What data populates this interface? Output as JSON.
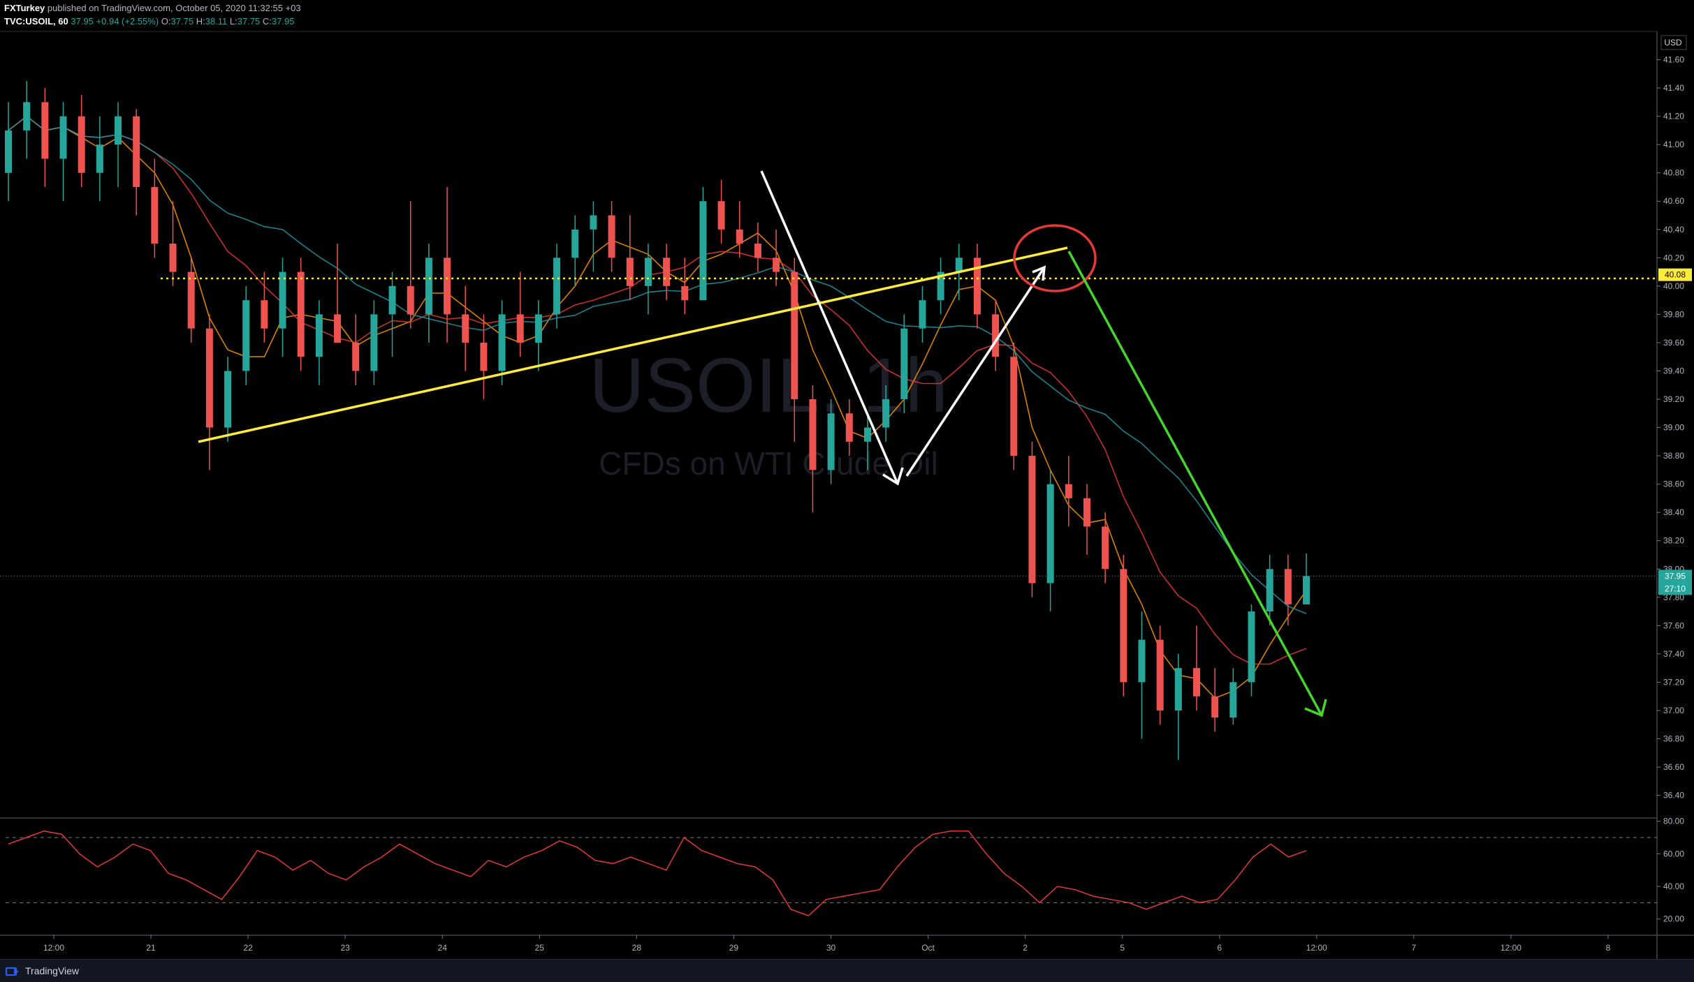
{
  "header": {
    "publisher": "FXTurkey",
    "published_text": "published on TradingView.com, October 05, 2020 11:32:55 +03",
    "symbol_line": "TVC:USOIL, 60",
    "last": "37.95",
    "change": "+0.94 (+2.55%)",
    "o_label": "O:",
    "o": "37.75",
    "h_label": "H:",
    "h": "38.11",
    "l_label": "L:",
    "l": "37.75",
    "c_label": "C:",
    "c": "37.95"
  },
  "watermark": {
    "symbol": "USOIL, 1h",
    "description": "CFDs on WTI Crude Oil"
  },
  "footer": {
    "brand": "TradingView"
  },
  "colors": {
    "background": "#000000",
    "bull": "#26a69a",
    "bear": "#ef5350",
    "trendline_yellow": "#ffeb3b",
    "arrow_white": "#ffffff",
    "arrow_green": "#44d62c",
    "circle_red": "#e53935",
    "ma_orange": "#ff9800",
    "ma_red": "#e53935",
    "ma_blue": "#2196a8",
    "rsi": "#e53935"
  },
  "chart_data": {
    "type": "candlestick",
    "symbol": "TVC:USOIL",
    "interval": "60",
    "currency": "USD",
    "y_ticks": [
      "41.60",
      "41.40",
      "41.20",
      "41.00",
      "40.80",
      "40.60",
      "40.40",
      "40.20",
      "40.00",
      "39.80",
      "39.60",
      "39.40",
      "39.20",
      "39.00",
      "38.80",
      "38.60",
      "38.40",
      "38.20",
      "38.00",
      "37.80",
      "37.60",
      "37.40",
      "37.20",
      "37.00",
      "36.80",
      "36.60",
      "36.40"
    ],
    "ylim": [
      36.25,
      41.8
    ],
    "x_ticks": [
      "12:00",
      "21",
      "22",
      "23",
      "24",
      "25",
      "28",
      "29",
      "30",
      "Oct",
      "2",
      "5",
      "6",
      "12:00",
      "7",
      "12:00",
      "8"
    ],
    "horizontal_level": {
      "value": 40.08,
      "label": "40.08"
    },
    "price_label": {
      "value": 37.95,
      "label": "37.95",
      "countdown": "27:10"
    },
    "candles_approx": [
      {
        "o": 40.8,
        "h": 41.3,
        "l": 40.6,
        "c": 41.1
      },
      {
        "o": 41.1,
        "h": 41.45,
        "l": 40.9,
        "c": 41.3
      },
      {
        "o": 41.3,
        "h": 41.4,
        "l": 40.7,
        "c": 40.9
      },
      {
        "o": 40.9,
        "h": 41.3,
        "l": 40.6,
        "c": 41.2
      },
      {
        "o": 41.2,
        "h": 41.35,
        "l": 40.7,
        "c": 40.8
      },
      {
        "o": 40.8,
        "h": 41.2,
        "l": 40.6,
        "c": 41.0
      },
      {
        "o": 41.0,
        "h": 41.3,
        "l": 40.7,
        "c": 41.2
      },
      {
        "o": 41.2,
        "h": 41.25,
        "l": 40.5,
        "c": 40.7
      },
      {
        "o": 40.7,
        "h": 40.9,
        "l": 40.2,
        "c": 40.3
      },
      {
        "o": 40.3,
        "h": 40.6,
        "l": 40.0,
        "c": 40.1
      },
      {
        "o": 40.1,
        "h": 40.2,
        "l": 39.6,
        "c": 39.7
      },
      {
        "o": 39.7,
        "h": 39.8,
        "l": 38.7,
        "c": 39.0
      },
      {
        "o": 39.0,
        "h": 39.5,
        "l": 38.9,
        "c": 39.4
      },
      {
        "o": 39.4,
        "h": 40.0,
        "l": 39.3,
        "c": 39.9
      },
      {
        "o": 39.9,
        "h": 40.1,
        "l": 39.6,
        "c": 39.7
      },
      {
        "o": 39.7,
        "h": 40.2,
        "l": 39.5,
        "c": 40.1
      },
      {
        "o": 40.1,
        "h": 40.2,
        "l": 39.4,
        "c": 39.5
      },
      {
        "o": 39.5,
        "h": 39.9,
        "l": 39.3,
        "c": 39.8
      },
      {
        "o": 39.8,
        "h": 40.3,
        "l": 39.6,
        "c": 39.6
      },
      {
        "o": 39.6,
        "h": 39.8,
        "l": 39.3,
        "c": 39.4
      },
      {
        "o": 39.4,
        "h": 39.9,
        "l": 39.3,
        "c": 39.8
      },
      {
        "o": 39.8,
        "h": 40.1,
        "l": 39.5,
        "c": 40.0
      },
      {
        "o": 40.0,
        "h": 40.6,
        "l": 39.7,
        "c": 39.8
      },
      {
        "o": 39.8,
        "h": 40.3,
        "l": 39.6,
        "c": 40.2
      },
      {
        "o": 40.2,
        "h": 40.7,
        "l": 39.6,
        "c": 39.8
      },
      {
        "o": 39.8,
        "h": 40.0,
        "l": 39.4,
        "c": 39.6
      },
      {
        "o": 39.6,
        "h": 39.8,
        "l": 39.2,
        "c": 39.4
      },
      {
        "o": 39.4,
        "h": 39.9,
        "l": 39.3,
        "c": 39.8
      },
      {
        "o": 39.8,
        "h": 40.1,
        "l": 39.5,
        "c": 39.6
      },
      {
        "o": 39.6,
        "h": 39.9,
        "l": 39.4,
        "c": 39.8
      },
      {
        "o": 39.8,
        "h": 40.3,
        "l": 39.7,
        "c": 40.2
      },
      {
        "o": 40.2,
        "h": 40.5,
        "l": 40.0,
        "c": 40.4
      },
      {
        "o": 40.4,
        "h": 40.6,
        "l": 40.1,
        "c": 40.5
      },
      {
        "o": 40.5,
        "h": 40.6,
        "l": 40.1,
        "c": 40.2
      },
      {
        "o": 40.2,
        "h": 40.5,
        "l": 39.9,
        "c": 40.0
      },
      {
        "o": 40.0,
        "h": 40.3,
        "l": 39.8,
        "c": 40.2
      },
      {
        "o": 40.2,
        "h": 40.3,
        "l": 39.9,
        "c": 40.0
      },
      {
        "o": 40.0,
        "h": 40.2,
        "l": 39.8,
        "c": 39.9
      },
      {
        "o": 39.9,
        "h": 40.7,
        "l": 39.9,
        "c": 40.6
      },
      {
        "o": 40.6,
        "h": 40.75,
        "l": 40.3,
        "c": 40.4
      },
      {
        "o": 40.4,
        "h": 40.6,
        "l": 40.2,
        "c": 40.3
      },
      {
        "o": 40.3,
        "h": 40.45,
        "l": 40.1,
        "c": 40.2
      },
      {
        "o": 40.2,
        "h": 40.4,
        "l": 40.0,
        "c": 40.1
      },
      {
        "o": 40.1,
        "h": 40.2,
        "l": 38.9,
        "c": 39.2
      },
      {
        "o": 39.2,
        "h": 39.3,
        "l": 38.4,
        "c": 38.7
      },
      {
        "o": 38.7,
        "h": 39.2,
        "l": 38.6,
        "c": 39.1
      },
      {
        "o": 39.1,
        "h": 39.2,
        "l": 38.8,
        "c": 38.9
      },
      {
        "o": 38.9,
        "h": 39.1,
        "l": 38.7,
        "c": 39.0
      },
      {
        "o": 39.0,
        "h": 39.3,
        "l": 38.9,
        "c": 39.2
      },
      {
        "o": 39.2,
        "h": 39.8,
        "l": 39.1,
        "c": 39.7
      },
      {
        "o": 39.7,
        "h": 40.0,
        "l": 39.6,
        "c": 39.9
      },
      {
        "o": 39.9,
        "h": 40.2,
        "l": 39.8,
        "c": 40.1
      },
      {
        "o": 40.1,
        "h": 40.3,
        "l": 39.9,
        "c": 40.2
      },
      {
        "o": 40.2,
        "h": 40.3,
        "l": 39.7,
        "c": 39.8
      },
      {
        "o": 39.8,
        "h": 39.9,
        "l": 39.4,
        "c": 39.5
      },
      {
        "o": 39.5,
        "h": 39.6,
        "l": 38.7,
        "c": 38.8
      },
      {
        "o": 38.8,
        "h": 38.9,
        "l": 37.8,
        "c": 37.9
      },
      {
        "o": 37.9,
        "h": 38.7,
        "l": 37.7,
        "c": 38.6
      },
      {
        "o": 38.6,
        "h": 38.8,
        "l": 38.3,
        "c": 38.5
      },
      {
        "o": 38.5,
        "h": 38.6,
        "l": 38.1,
        "c": 38.3
      },
      {
        "o": 38.3,
        "h": 38.4,
        "l": 37.9,
        "c": 38.0
      },
      {
        "o": 38.0,
        "h": 38.1,
        "l": 37.1,
        "c": 37.2
      },
      {
        "o": 37.2,
        "h": 37.7,
        "l": 36.8,
        "c": 37.5
      },
      {
        "o": 37.5,
        "h": 37.6,
        "l": 36.9,
        "c": 37.0
      },
      {
        "o": 37.0,
        "h": 37.4,
        "l": 36.65,
        "c": 37.3
      },
      {
        "o": 37.3,
        "h": 37.6,
        "l": 37.0,
        "c": 37.1
      },
      {
        "o": 37.1,
        "h": 37.3,
        "l": 36.85,
        "c": 36.95
      },
      {
        "o": 36.95,
        "h": 37.3,
        "l": 36.9,
        "c": 37.2
      },
      {
        "o": 37.2,
        "h": 37.75,
        "l": 37.1,
        "c": 37.7
      },
      {
        "o": 37.7,
        "h": 38.1,
        "l": 37.6,
        "c": 38.0
      },
      {
        "o": 38.0,
        "h": 38.1,
        "l": 37.6,
        "c": 37.75
      },
      {
        "o": 37.75,
        "h": 38.11,
        "l": 37.75,
        "c": 37.95
      }
    ],
    "annotations": [
      "yellow rising trendline from 22nd to Oct 1",
      "white zigzag arrows (down then up)",
      "red circle at Oct 1 top",
      "green downward arrow from Oct 1 to Oct 5",
      "yellow dotted horizontal line at 40.08"
    ],
    "rsi_panel": {
      "y_ticks": [
        "80.00",
        "60.00",
        "40.00",
        "20.00"
      ],
      "ylim": [
        10,
        82
      ],
      "bands": [
        70,
        30
      ],
      "values": [
        66,
        70,
        74,
        72,
        60,
        52,
        58,
        66,
        62,
        48,
        44,
        38,
        32,
        46,
        62,
        58,
        50,
        56,
        48,
        44,
        52,
        58,
        66,
        60,
        54,
        50,
        46,
        56,
        52,
        58,
        62,
        68,
        64,
        56,
        54,
        58,
        54,
        50,
        70,
        62,
        58,
        54,
        52,
        44,
        26,
        22,
        32,
        34,
        36,
        38,
        52,
        64,
        72,
        74,
        74,
        60,
        48,
        40,
        30,
        40,
        38,
        34,
        32,
        30,
        26,
        30,
        34,
        30,
        32,
        44,
        58,
        66,
        58,
        62
      ]
    }
  }
}
